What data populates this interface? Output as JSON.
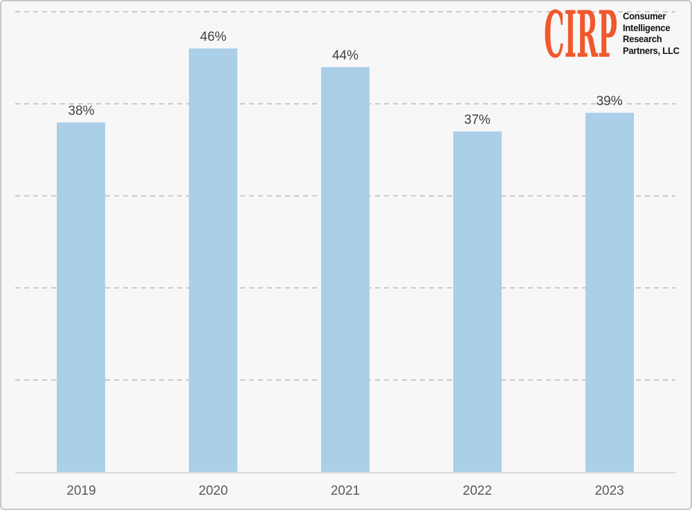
{
  "logo": {
    "brand": "CIRP",
    "brand_color": "#F1582B",
    "company_lines": [
      "Consumer",
      "Intelligence",
      "Research",
      "Partners, LLC"
    ]
  },
  "chart_data": {
    "type": "bar",
    "categories": [
      "2019",
      "2020",
      "2021",
      "2022",
      "2023"
    ],
    "values": [
      38,
      46,
      44,
      37,
      39
    ],
    "value_labels": [
      "38%",
      "46%",
      "44%",
      "37%",
      "39%"
    ],
    "ylim": [
      0,
      50
    ],
    "gridline_step": 10,
    "grid": "horizontal-dashed",
    "y_tick_labels_visible": false,
    "bar_color": "#ABCFE9",
    "value_label_color": "#404040",
    "axis_label_color": "#595959",
    "background_color": "#F7F7F7",
    "legend": null
  }
}
